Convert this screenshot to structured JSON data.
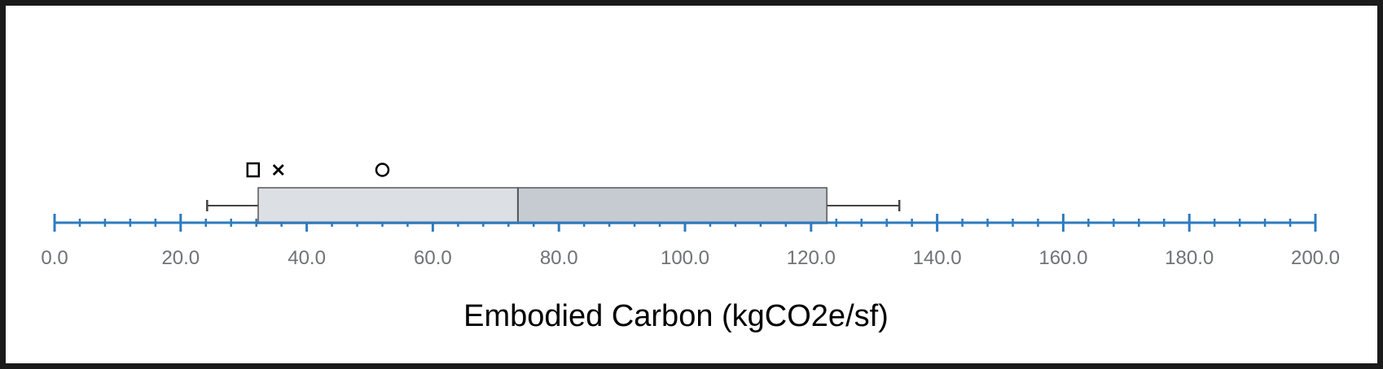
{
  "chart_data": {
    "type": "boxplot",
    "orientation": "horizontal",
    "xlabel": "Embodied Carbon (kgCO2e/sf)",
    "xlim": [
      0,
      200
    ],
    "major_tick_step": 20,
    "minor_tick_step": 4,
    "tick_labels": [
      "0.0",
      "20.0",
      "40.0",
      "60.0",
      "80.0",
      "100.0",
      "120.0",
      "140.0",
      "160.0",
      "180.0",
      "200.0"
    ],
    "box": {
      "whisker_low": 24.2,
      "q1": 32.3,
      "median": 73.5,
      "q3": 122.5,
      "whisker_high": 134.0
    },
    "markers": [
      {
        "symbol": "square",
        "value": 31.5
      },
      {
        "symbol": "cross",
        "value": 35.5
      },
      {
        "symbol": "circle",
        "value": 52.0
      }
    ],
    "grid": false,
    "colors": {
      "axis": "#2e7bbf",
      "box_lower": "#dcdfe4",
      "box_upper": "#c6cbd2",
      "box_stroke": "#555555",
      "whisker": "#444444",
      "tick_label": "#6f7277",
      "marker": "#000000"
    }
  }
}
